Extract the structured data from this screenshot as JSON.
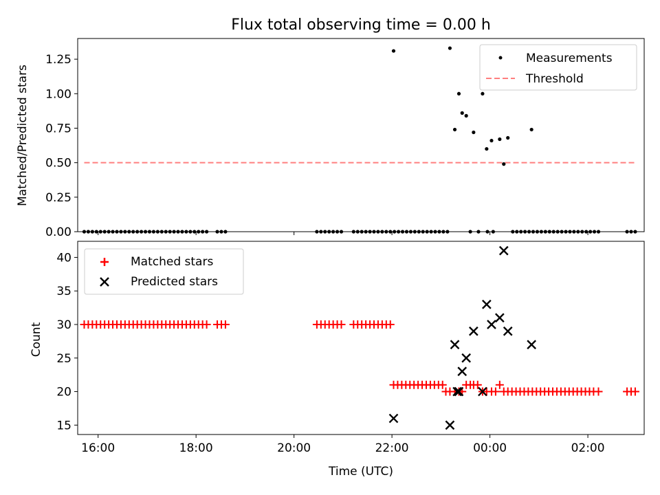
{
  "figure": {
    "title": "Flux total observing time = 0.00 h"
  },
  "chart_data": [
    {
      "type": "scatter",
      "ylabel": "Matched/Predicted stars",
      "xlabel": "",
      "xlim": [
        "15:35",
        "03:09"
      ],
      "ylim": [
        0,
        1.4
      ],
      "xticks": [
        "16:00",
        "18:00",
        "20:00",
        "22:00",
        "00:00",
        "02:00"
      ],
      "xtick_labels_visible": false,
      "yticks": [
        0.0,
        0.25,
        0.5,
        0.75,
        1.0,
        1.25
      ],
      "ytick_labels": [
        "0.00",
        "0.25",
        "0.50",
        "0.75",
        "1.00",
        "1.25"
      ],
      "legend_position": "top-right",
      "series": [
        {
          "name": "Measurements",
          "marker": "dot",
          "color": "#000000",
          "points": [
            [
              "15:43",
              0
            ],
            [
              "15:48",
              0
            ],
            [
              "15:53",
              0
            ],
            [
              "15:58",
              0
            ],
            [
              "16:03",
              0
            ],
            [
              "16:08",
              0
            ],
            [
              "16:13",
              0
            ],
            [
              "16:18",
              0
            ],
            [
              "16:23",
              0
            ],
            [
              "16:28",
              0
            ],
            [
              "16:33",
              0
            ],
            [
              "16:38",
              0
            ],
            [
              "16:43",
              0
            ],
            [
              "16:48",
              0
            ],
            [
              "16:53",
              0
            ],
            [
              "16:58",
              0
            ],
            [
              "17:03",
              0
            ],
            [
              "17:08",
              0
            ],
            [
              "17:13",
              0
            ],
            [
              "17:18",
              0
            ],
            [
              "17:23",
              0
            ],
            [
              "17:28",
              0
            ],
            [
              "17:33",
              0
            ],
            [
              "17:38",
              0
            ],
            [
              "17:43",
              0
            ],
            [
              "17:48",
              0
            ],
            [
              "17:53",
              0
            ],
            [
              "17:58",
              0
            ],
            [
              "18:03",
              0
            ],
            [
              "18:08",
              0
            ],
            [
              "18:13",
              0
            ],
            [
              "18:26",
              0
            ],
            [
              "18:31",
              0
            ],
            [
              "18:36",
              0
            ],
            [
              "20:28",
              0
            ],
            [
              "20:33",
              0
            ],
            [
              "20:38",
              0
            ],
            [
              "20:43",
              0
            ],
            [
              "20:48",
              0
            ],
            [
              "20:53",
              0
            ],
            [
              "20:58",
              0
            ],
            [
              "21:13",
              0
            ],
            [
              "21:18",
              0
            ],
            [
              "21:23",
              0
            ],
            [
              "21:28",
              0
            ],
            [
              "21:33",
              0
            ],
            [
              "21:38",
              0
            ],
            [
              "21:43",
              0
            ],
            [
              "21:48",
              0
            ],
            [
              "21:53",
              0
            ],
            [
              "21:58",
              0
            ],
            [
              "22:02",
              1.31
            ],
            [
              "22:03",
              0
            ],
            [
              "22:08",
              0
            ],
            [
              "22:13",
              0
            ],
            [
              "22:18",
              0
            ],
            [
              "22:23",
              0
            ],
            [
              "22:28",
              0
            ],
            [
              "22:33",
              0
            ],
            [
              "22:38",
              0
            ],
            [
              "22:43",
              0
            ],
            [
              "22:48",
              0
            ],
            [
              "22:53",
              0
            ],
            [
              "22:58",
              0
            ],
            [
              "23:03",
              0
            ],
            [
              "23:08",
              0
            ],
            [
              "23:11",
              1.33
            ],
            [
              "23:17",
              0.74
            ],
            [
              "23:22",
              1.0
            ],
            [
              "23:26",
              0.86
            ],
            [
              "23:31",
              0.84
            ],
            [
              "23:36",
              0
            ],
            [
              "23:40",
              0.72
            ],
            [
              "23:46",
              0
            ],
            [
              "23:51",
              1.0
            ],
            [
              "23:56",
              0.6
            ],
            [
              "23:57",
              0
            ],
            [
              "00:04",
              0
            ],
            [
              "00:02",
              0.66
            ],
            [
              "00:12",
              0.67
            ],
            [
              "00:17",
              0.49
            ],
            [
              "00:22",
              0.68
            ],
            [
              "00:28",
              0
            ],
            [
              "00:33",
              0
            ],
            [
              "00:38",
              0
            ],
            [
              "00:43",
              0
            ],
            [
              "00:48",
              0
            ],
            [
              "00:53",
              0
            ],
            [
              "00:51",
              0.74
            ],
            [
              "00:58",
              0
            ],
            [
              "01:03",
              0
            ],
            [
              "01:08",
              0
            ],
            [
              "01:13",
              0
            ],
            [
              "01:18",
              0
            ],
            [
              "01:23",
              0
            ],
            [
              "01:28",
              0
            ],
            [
              "01:33",
              0
            ],
            [
              "01:38",
              0
            ],
            [
              "01:43",
              0
            ],
            [
              "01:48",
              0
            ],
            [
              "01:53",
              0
            ],
            [
              "01:58",
              0
            ],
            [
              "02:03",
              0
            ],
            [
              "02:08",
              0
            ],
            [
              "02:13",
              0
            ],
            [
              "02:48",
              0
            ],
            [
              "02:53",
              0
            ],
            [
              "02:58",
              0
            ]
          ]
        },
        {
          "name": "Threshold",
          "line_style": "dashed",
          "color": "#ff7f7f",
          "points": [
            [
              "15:43",
              0.5
            ],
            [
              "02:58",
              0.5
            ]
          ]
        }
      ]
    },
    {
      "type": "scatter",
      "xlabel": "Time (UTC)",
      "ylabel": "Count",
      "xlim": [
        "15:35",
        "03:09"
      ],
      "ylim": [
        13.6,
        42.4
      ],
      "xticks": [
        "16:00",
        "18:00",
        "20:00",
        "22:00",
        "00:00",
        "02:00"
      ],
      "yticks": [
        15,
        20,
        25,
        30,
        35,
        40
      ],
      "legend_position": "top-left",
      "series": [
        {
          "name": "Matched stars",
          "marker": "plus",
          "color": "#ff0000",
          "points": [
            [
              "15:43",
              30
            ],
            [
              "15:48",
              30
            ],
            [
              "15:53",
              30
            ],
            [
              "15:58",
              30
            ],
            [
              "16:03",
              30
            ],
            [
              "16:08",
              30
            ],
            [
              "16:13",
              30
            ],
            [
              "16:18",
              30
            ],
            [
              "16:23",
              30
            ],
            [
              "16:28",
              30
            ],
            [
              "16:33",
              30
            ],
            [
              "16:38",
              30
            ],
            [
              "16:43",
              30
            ],
            [
              "16:48",
              30
            ],
            [
              "16:53",
              30
            ],
            [
              "16:58",
              30
            ],
            [
              "17:03",
              30
            ],
            [
              "17:08",
              30
            ],
            [
              "17:13",
              30
            ],
            [
              "17:18",
              30
            ],
            [
              "17:23",
              30
            ],
            [
              "17:28",
              30
            ],
            [
              "17:33",
              30
            ],
            [
              "17:38",
              30
            ],
            [
              "17:43",
              30
            ],
            [
              "17:48",
              30
            ],
            [
              "17:53",
              30
            ],
            [
              "17:58",
              30
            ],
            [
              "18:03",
              30
            ],
            [
              "18:08",
              30
            ],
            [
              "18:13",
              30
            ],
            [
              "18:26",
              30
            ],
            [
              "18:31",
              30
            ],
            [
              "18:36",
              30
            ],
            [
              "20:28",
              30
            ],
            [
              "20:33",
              30
            ],
            [
              "20:38",
              30
            ],
            [
              "20:43",
              30
            ],
            [
              "20:48",
              30
            ],
            [
              "20:53",
              30
            ],
            [
              "20:58",
              30
            ],
            [
              "21:13",
              30
            ],
            [
              "21:18",
              30
            ],
            [
              "21:23",
              30
            ],
            [
              "21:28",
              30
            ],
            [
              "21:33",
              30
            ],
            [
              "21:38",
              30
            ],
            [
              "21:43",
              30
            ],
            [
              "21:48",
              30
            ],
            [
              "21:53",
              30
            ],
            [
              "21:58",
              30
            ],
            [
              "22:02",
              21
            ],
            [
              "22:07",
              21
            ],
            [
              "22:12",
              21
            ],
            [
              "22:17",
              21
            ],
            [
              "22:22",
              21
            ],
            [
              "22:27",
              21
            ],
            [
              "22:32",
              21
            ],
            [
              "22:37",
              21
            ],
            [
              "22:42",
              21
            ],
            [
              "22:47",
              21
            ],
            [
              "22:52",
              21
            ],
            [
              "22:57",
              21
            ],
            [
              "23:02",
              21
            ],
            [
              "23:06",
              20
            ],
            [
              "23:11",
              20
            ],
            [
              "23:17",
              20
            ],
            [
              "23:22",
              20
            ],
            [
              "23:26",
              20
            ],
            [
              "23:31",
              21
            ],
            [
              "23:36",
              21
            ],
            [
              "23:40",
              21
            ],
            [
              "23:45",
              21
            ],
            [
              "23:51",
              20
            ],
            [
              "23:56",
              20
            ],
            [
              "00:02",
              20
            ],
            [
              "00:07",
              20
            ],
            [
              "00:12",
              21
            ],
            [
              "00:17",
              20
            ],
            [
              "00:22",
              20
            ],
            [
              "00:27",
              20
            ],
            [
              "00:32",
              20
            ],
            [
              "00:37",
              20
            ],
            [
              "00:42",
              20
            ],
            [
              "00:47",
              20
            ],
            [
              "00:52",
              20
            ],
            [
              "00:57",
              20
            ],
            [
              "01:02",
              20
            ],
            [
              "01:07",
              20
            ],
            [
              "01:12",
              20
            ],
            [
              "01:17",
              20
            ],
            [
              "01:22",
              20
            ],
            [
              "01:27",
              20
            ],
            [
              "01:32",
              20
            ],
            [
              "01:37",
              20
            ],
            [
              "01:42",
              20
            ],
            [
              "01:47",
              20
            ],
            [
              "01:52",
              20
            ],
            [
              "01:57",
              20
            ],
            [
              "02:02",
              20
            ],
            [
              "02:07",
              20
            ],
            [
              "02:13",
              20
            ],
            [
              "02:48",
              20
            ],
            [
              "02:53",
              20
            ],
            [
              "02:58",
              20
            ]
          ]
        },
        {
          "name": "Predicted stars",
          "marker": "x",
          "color": "#000000",
          "points": [
            [
              "22:02",
              16
            ],
            [
              "23:11",
              15
            ],
            [
              "23:17",
              27
            ],
            [
              "23:20",
              20
            ],
            [
              "23:22",
              20
            ],
            [
              "23:26",
              23
            ],
            [
              "23:31",
              25
            ],
            [
              "23:40",
              29
            ],
            [
              "23:51",
              20
            ],
            [
              "23:56",
              33
            ],
            [
              "00:02",
              30
            ],
            [
              "00:12",
              31
            ],
            [
              "00:17",
              41
            ],
            [
              "00:22",
              29
            ],
            [
              "00:51",
              27
            ]
          ]
        }
      ]
    }
  ]
}
